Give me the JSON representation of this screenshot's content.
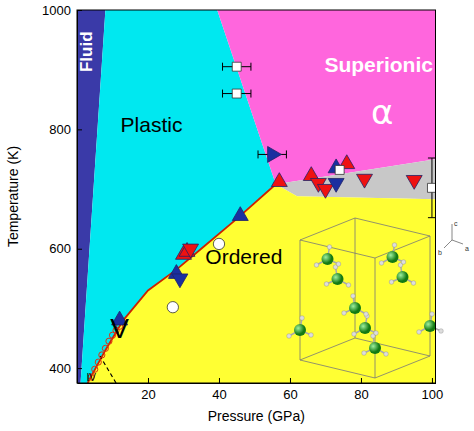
{
  "chart_data": {
    "type": "phase_diagram",
    "x_label": "Pressure (GPa)",
    "y_label": "Temperature (K)",
    "xlim": [
      0,
      101
    ],
    "xticks": [
      20,
      40,
      60,
      80,
      100
    ],
    "ylim": [
      375,
      1000
    ],
    "yticks": [
      400,
      600,
      800,
      1000
    ],
    "grid": false,
    "regions": [
      {
        "color": "#3a3aa8",
        "x": [
          0,
          1,
          8,
          0
        ],
        "y": [
          375,
          375,
          1000,
          1000
        ]
      },
      {
        "color": "#00e8f0",
        "x": [
          1,
          8,
          39.5,
          56,
          45,
          35,
          28,
          20,
          13,
          8,
          3
        ],
        "y": [
          375,
          1000,
          1000,
          708,
          650,
          600,
          565,
          530,
          480,
          430,
          375
        ]
      },
      {
        "color": "#ff66dd",
        "x": [
          39.5,
          101,
          101,
          56
        ],
        "y": [
          1000,
          1000,
          750,
          708
        ]
      },
      {
        "color": "#c8c8c8",
        "x": [
          56,
          101,
          101,
          62
        ],
        "y": [
          708,
          750,
          683,
          688
        ]
      },
      {
        "color": "#ffff33",
        "x": [
          3,
          8,
          13,
          20,
          28,
          35,
          45,
          56,
          62,
          101,
          101
        ],
        "y": [
          375,
          430,
          480,
          530,
          565,
          600,
          650,
          708,
          688,
          683,
          375
        ]
      }
    ],
    "series": [
      {
        "type": "line",
        "line_style": "solid",
        "color": "#cc2200",
        "x": [
          3,
          8,
          13,
          20,
          28,
          35,
          45,
          56
        ],
        "values": [
          375,
          430,
          480,
          530,
          565,
          600,
          650,
          708
        ]
      },
      {
        "type": "line",
        "line_style": "dashed",
        "color": "#000000",
        "x": [
          11,
          9.5,
          8,
          6.5
        ],
        "values": [
          375,
          390,
          405,
          420
        ]
      },
      {
        "type": "scatter",
        "marker": "circle-open",
        "color": "#e03010",
        "x": [
          4,
          5,
          6,
          7,
          8,
          9,
          10,
          11,
          12
        ],
        "values": [
          385,
          398,
          410,
          422,
          433,
          445,
          455,
          463,
          470
        ]
      },
      {
        "type": "scatter",
        "marker": "triangle-up",
        "color": "#ee1111",
        "x": [
          30,
          31,
          57,
          66,
          76
        ],
        "values": [
          590,
          595,
          712,
          722,
          742
        ]
      },
      {
        "type": "scatter",
        "marker": "triangle-down",
        "color": "#ee1111",
        "x": [
          32,
          68,
          70,
          81,
          95
        ],
        "values": [
          600,
          710,
          700,
          717,
          715
        ]
      },
      {
        "type": "scatter",
        "marker": "triangle-up",
        "color": "#1a2fa0",
        "x": [
          12,
          28,
          46,
          73
        ],
        "values": [
          480,
          558,
          655,
          735
        ]
      },
      {
        "type": "scatter",
        "marker": "triangle-down",
        "color": "#1a2fa0",
        "x": [
          29,
          73
        ],
        "values": [
          550,
          710
        ]
      },
      {
        "type": "scatter",
        "marker": "triangle-right",
        "color": "#1a2fa0",
        "x": [
          55
        ],
        "values": [
          758
        ],
        "x_error": [
          4
        ]
      },
      {
        "type": "scatter",
        "marker": "circle",
        "color": "#ffffff",
        "x": [
          27,
          40
        ],
        "values": [
          502,
          608
        ]
      },
      {
        "type": "scatter",
        "marker": "square",
        "color": "#ffffff",
        "x": [
          45,
          45
        ],
        "values": [
          905,
          860
        ],
        "x_error": [
          4,
          4
        ]
      },
      {
        "type": "scatter",
        "marker": "square",
        "color": "#ffffff",
        "x": [
          74
        ],
        "values": [
          732
        ]
      },
      {
        "type": "scatter",
        "marker": "square",
        "color": "#ffffff",
        "x": [
          100
        ],
        "values": [
          702
        ],
        "y_error": [
          50
        ]
      }
    ],
    "annotations": [
      {
        "text": "Fluid",
        "x": 3,
        "y": 930,
        "color": "#ffffff"
      },
      {
        "text": "Plastic",
        "x": 21,
        "y": 805,
        "color": "#000000"
      },
      {
        "text": "Superionic",
        "x": 85,
        "y": 905,
        "color": "#ffffff"
      },
      {
        "text": "α",
        "x": 86,
        "y": 825,
        "color": "#ffffff"
      },
      {
        "text": "Ordered",
        "x": 47,
        "y": 583,
        "color": "#000000"
      },
      {
        "text": "V",
        "x": 12,
        "y": 462,
        "color": "#000000"
      },
      {
        "text": "IV",
        "x": 4,
        "y": 383,
        "color": "#000000"
      }
    ],
    "inset_labels": [
      "c",
      "a",
      "b"
    ]
  }
}
